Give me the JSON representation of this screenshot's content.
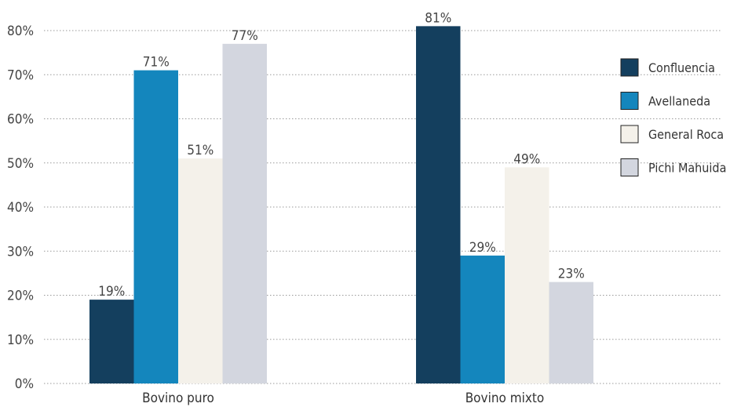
{
  "chart_data": {
    "type": "bar",
    "title": "",
    "xlabel": "",
    "ylabel": "",
    "categories": [
      "Bovino puro",
      "Bovino mixto"
    ],
    "series": [
      {
        "name": "Confluencia",
        "values": [
          19,
          81
        ],
        "labels": [
          "19%",
          "81%"
        ],
        "color": "#143f5e"
      },
      {
        "name": "Avellaneda",
        "values": [
          71,
          29
        ],
        "labels": [
          "71%",
          "29%"
        ],
        "color": "#1486bd"
      },
      {
        "name": "General Roca",
        "values": [
          51,
          49
        ],
        "labels": [
          "51%",
          "49%"
        ],
        "color": "#f4f1ea"
      },
      {
        "name": "Pichi Mahuida",
        "values": [
          77,
          23
        ],
        "labels": [
          "77%",
          "23%"
        ],
        "color": "#d3d6df"
      }
    ],
    "ylim": [
      0,
      80
    ],
    "yticks": [
      0,
      10,
      20,
      30,
      40,
      50,
      60,
      70,
      80
    ],
    "ytick_labels": [
      "0%",
      "10%",
      "20%",
      "30%",
      "40%",
      "50%",
      "60%",
      "70%",
      "80%"
    ],
    "grid": true,
    "legend_position": "right"
  }
}
